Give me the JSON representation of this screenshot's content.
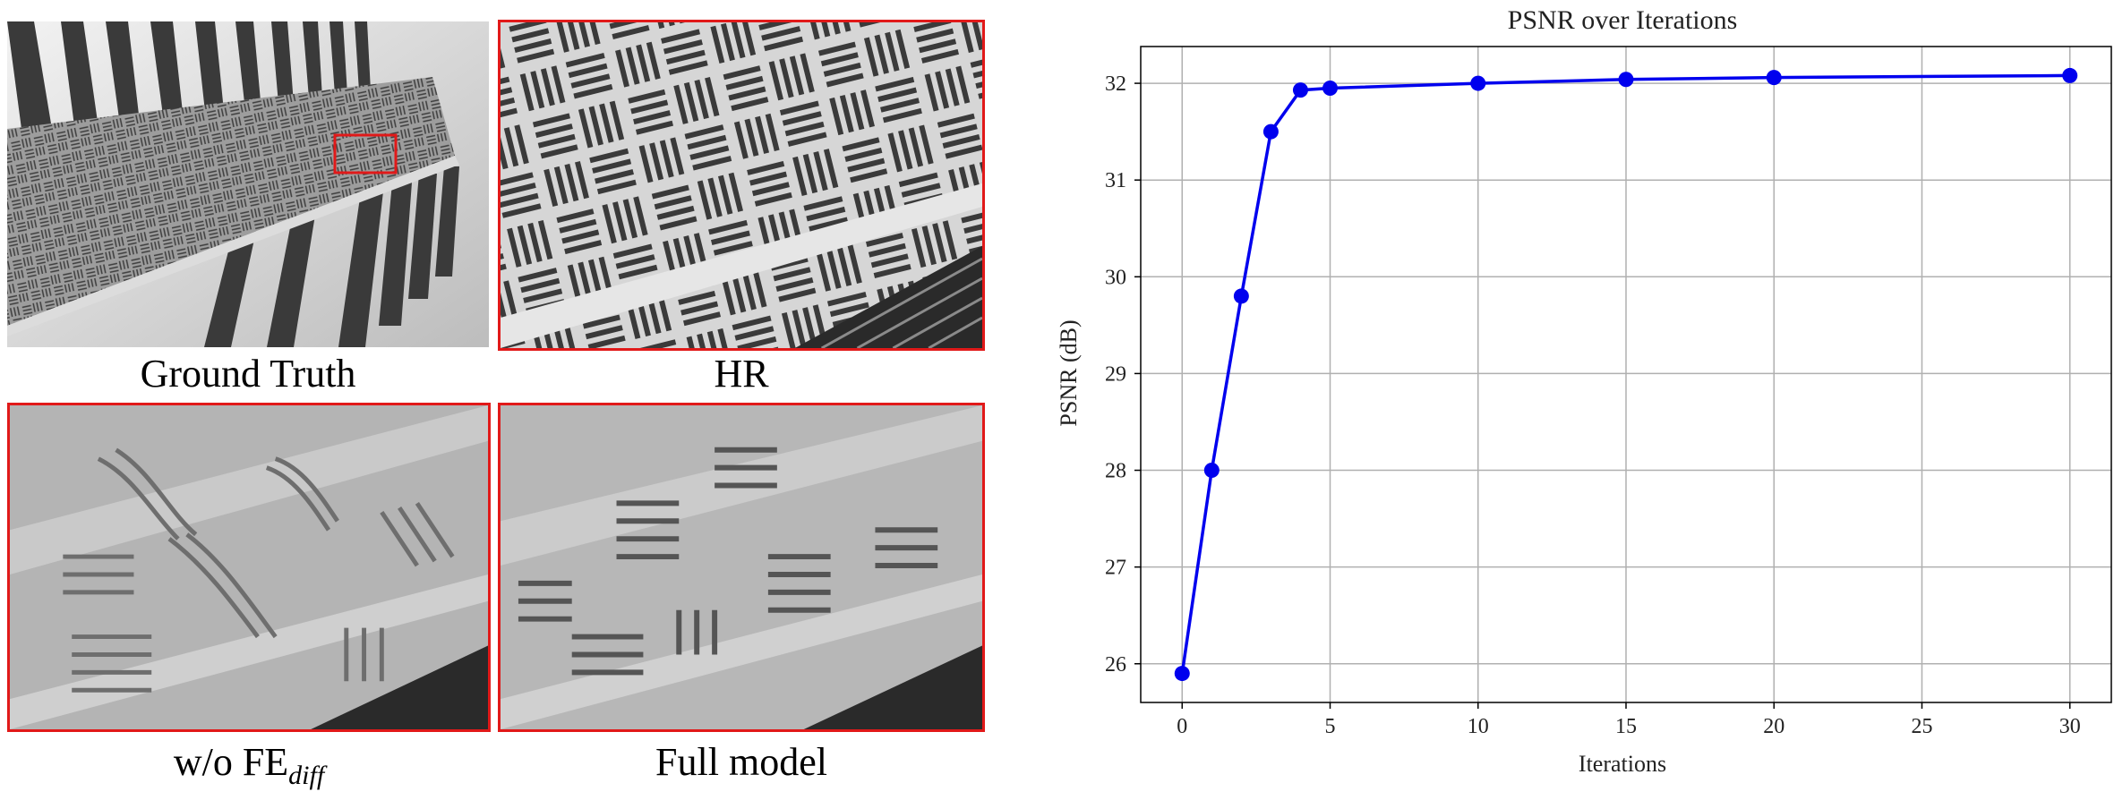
{
  "figure": {
    "captions": {
      "ground_truth": "Ground Truth",
      "hr": "HR",
      "wo_prefix": "w/o FE",
      "wo_subscript": "diff",
      "full_model": "Full model"
    },
    "colors": {
      "highlight_box": "#e11919",
      "series": "#0000ee"
    }
  },
  "chart_data": {
    "type": "line",
    "title": "PSNR over Iterations",
    "xlabel": "Iterations",
    "ylabel": "PSNR (dB)",
    "x": [
      0,
      1,
      2,
      3,
      4,
      5,
      10,
      15,
      20,
      30
    ],
    "series": [
      {
        "name": "",
        "values": [
          25.9,
          28.0,
          29.8,
          31.5,
          31.93,
          31.95,
          32.0,
          32.04,
          32.06,
          32.08
        ]
      }
    ],
    "xlim": [
      -1.4,
      31.4
    ],
    "ylim": [
      25.6,
      32.38
    ],
    "xticks": [
      0,
      5,
      10,
      15,
      20,
      25,
      30
    ],
    "yticks": [
      26,
      27,
      28,
      29,
      30,
      31,
      32
    ],
    "grid": true,
    "marker": "circle"
  }
}
